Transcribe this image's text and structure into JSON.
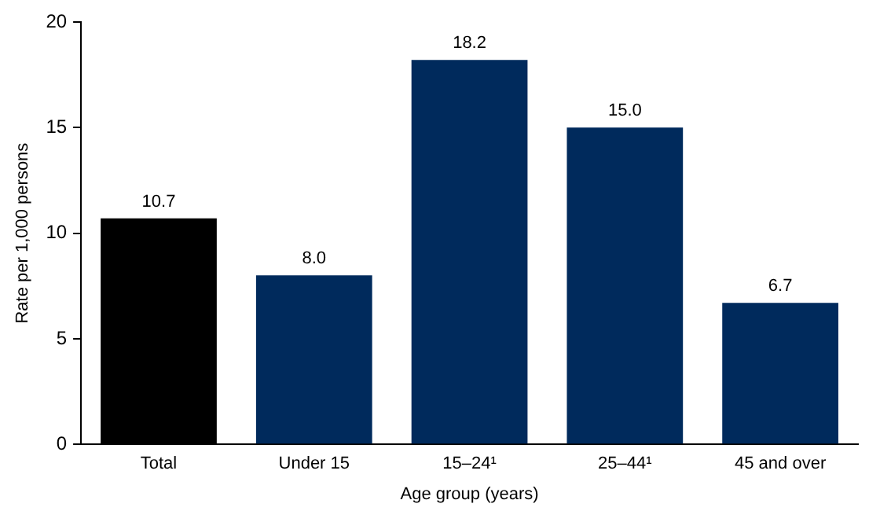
{
  "chart_data": {
    "type": "bar",
    "xlabel": "Age group (years)",
    "ylabel": "Rate per 1,000 persons",
    "categories": [
      "Total",
      "Under 15",
      "15–24¹",
      "25–44¹",
      "45 and over"
    ],
    "values": [
      10.7,
      8.0,
      18.2,
      15.0,
      6.7
    ],
    "colors": [
      "#000000",
      "#002a5c",
      "#002a5c",
      "#002a5c",
      "#002a5c"
    ],
    "value_labels": [
      "10.7",
      "8.0",
      "18.2",
      "15.0",
      "6.7"
    ],
    "ylim": [
      0,
      20
    ],
    "yticks": [
      0,
      5,
      10,
      15,
      20
    ],
    "grid": false,
    "legend": false
  }
}
